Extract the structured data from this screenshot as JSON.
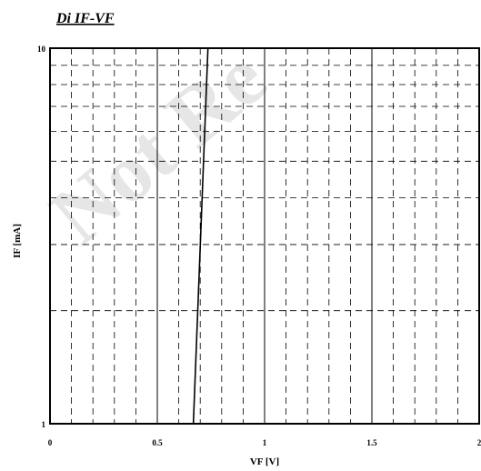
{
  "chart_data": {
    "type": "line",
    "title": "Di IF-VF",
    "xlabel": "VF [V]",
    "ylabel": "IF [mA]",
    "xlim": [
      0,
      2
    ],
    "ylim": [
      1,
      10
    ],
    "y_scale": "log",
    "x_ticks": [
      0,
      0.5,
      1,
      1.5,
      2
    ],
    "x_tick_labels": [
      "0",
      "0.5",
      "1",
      "1.5",
      "2"
    ],
    "y_ticks": [
      1,
      10
    ],
    "y_tick_labels": [
      "1",
      "10"
    ],
    "grid": "major solid, minor dashed",
    "series": [
      {
        "x": [
          0.668,
          0.736
        ],
        "y": [
          1,
          10
        ]
      }
    ]
  },
  "watermark": "Not Re",
  "colors": {
    "line": "#000000",
    "grid": "#000000",
    "watermark": "#c8c8c8"
  }
}
